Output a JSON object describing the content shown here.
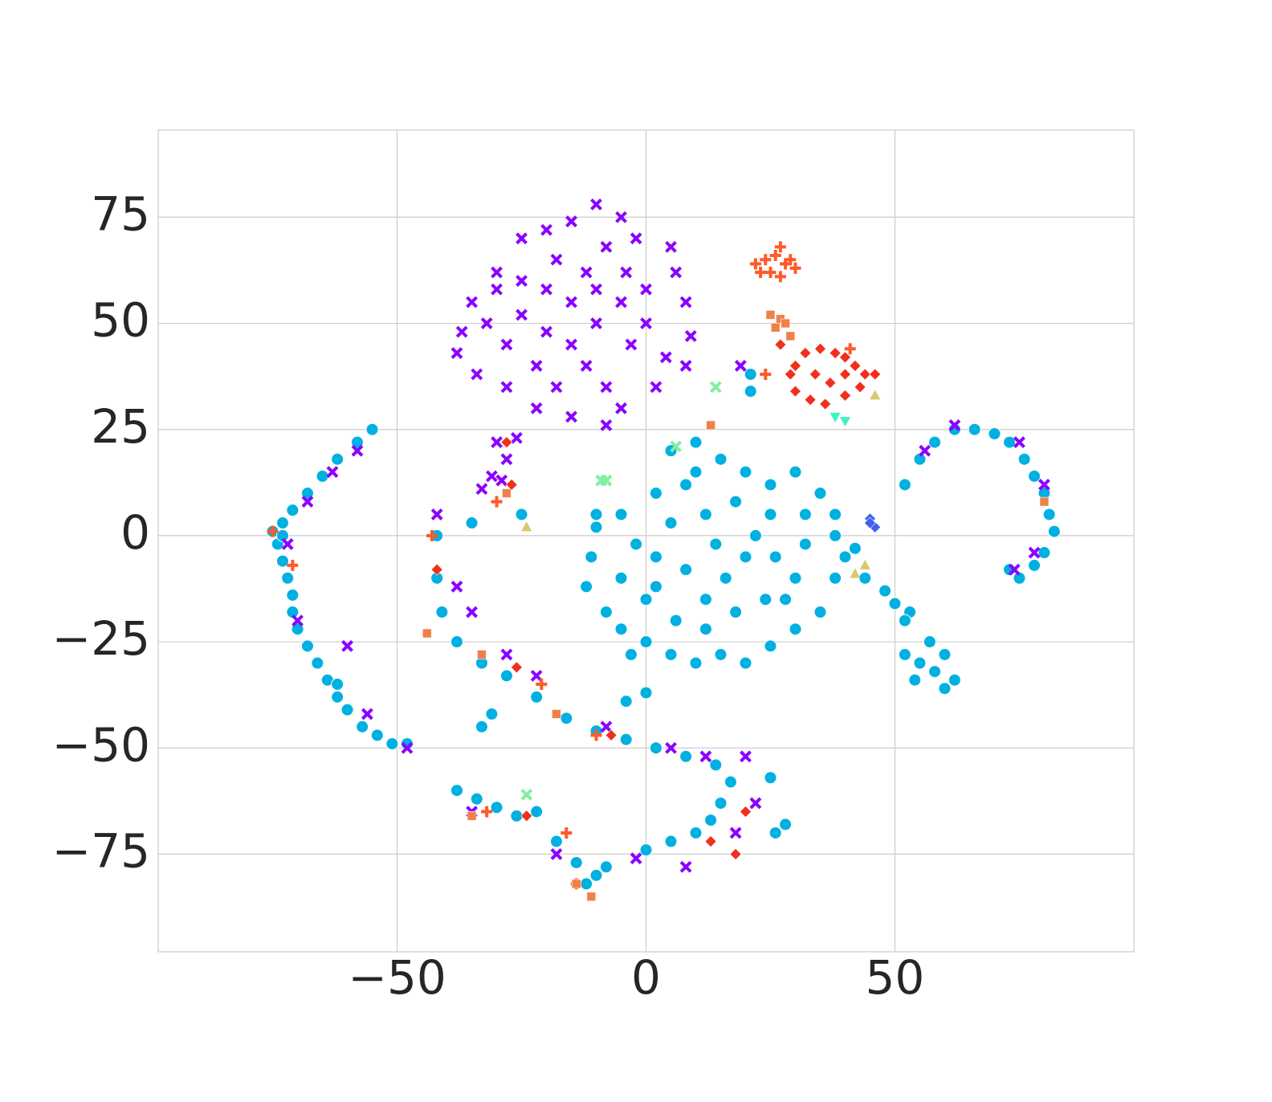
{
  "chart_data": {
    "type": "scatter",
    "xlim": [
      -98,
      98
    ],
    "ylim": [
      -98,
      95.5
    ],
    "xticks": [
      {
        "value": -50,
        "label": "−50"
      },
      0,
      50
    ],
    "yticks": [
      {
        "value": -75,
        "label": "−75"
      },
      {
        "value": -50,
        "label": "−50"
      },
      {
        "value": -25,
        "label": "−25"
      },
      0,
      25,
      50,
      75
    ],
    "grid": true,
    "series": [
      {
        "color": "#00b0e0",
        "marker": "circle",
        "x": [
          -55,
          -58,
          -62,
          -65,
          -68,
          -71,
          -73,
          -75,
          -74,
          -73,
          -72,
          -71,
          -71,
          -70,
          -68,
          -66,
          -64,
          -62,
          -60,
          -57,
          -54,
          -51,
          -48,
          -62,
          -73,
          -10,
          -25,
          -35,
          -42,
          -42,
          -41,
          -38,
          -33,
          -28,
          -22,
          -16,
          -10,
          -4,
          2,
          8,
          14,
          17,
          15,
          13,
          10,
          5,
          0,
          -38,
          -34,
          -30,
          -26,
          -22,
          -18,
          -14,
          -10,
          -12,
          -8,
          -31,
          -33,
          0,
          -4,
          28,
          26,
          25,
          52,
          55,
          58,
          62,
          66,
          70,
          73,
          76,
          78,
          80,
          81,
          82,
          80,
          78,
          75,
          73,
          52,
          55,
          58,
          60,
          62,
          57,
          54,
          60,
          40,
          44,
          48,
          50,
          53,
          52,
          42,
          5,
          10,
          15,
          20,
          25,
          30,
          35,
          38,
          8,
          2,
          -5,
          -10,
          -11,
          -12,
          -8,
          -5,
          0,
          5,
          10,
          15,
          20,
          25,
          30,
          35,
          38,
          38,
          32,
          25,
          18,
          12,
          5,
          -2,
          -5,
          2,
          8,
          14,
          20,
          26,
          30,
          24,
          18,
          12,
          6,
          0,
          -3,
          12,
          28,
          22,
          10,
          32,
          2,
          16,
          21,
          21
        ],
        "values": [
          25,
          22,
          18,
          14,
          10,
          6,
          3,
          1,
          -2,
          -6,
          -10,
          -14,
          -18,
          -22,
          -26,
          -30,
          -34,
          -38,
          -41,
          -45,
          -47,
          -49,
          -49,
          -35,
          0,
          5,
          5,
          3,
          0,
          -10,
          -18,
          -25,
          -30,
          -33,
          -38,
          -43,
          -46,
          -48,
          -50,
          -52,
          -54,
          -58,
          -63,
          -67,
          -70,
          -72,
          -74,
          -60,
          -62,
          -64,
          -66,
          -65,
          -72,
          -77,
          -80,
          -82,
          -78,
          -42,
          -45,
          -37,
          -39,
          -68,
          -70,
          -57,
          12,
          18,
          22,
          25,
          25,
          24,
          22,
          18,
          14,
          10,
          5,
          1,
          -4,
          -7,
          -10,
          -8,
          -28,
          -30,
          -32,
          -28,
          -34,
          -25,
          -34,
          -36,
          -5,
          -10,
          -13,
          -16,
          -18,
          -20,
          -3,
          20,
          22,
          18,
          15,
          12,
          15,
          10,
          5,
          12,
          10,
          5,
          2,
          -5,
          -12,
          -18,
          -22,
          -25,
          -28,
          -30,
          -28,
          -30,
          -26,
          -22,
          -18,
          -10,
          0,
          5,
          5,
          8,
          5,
          3,
          -2,
          -10,
          -12,
          -8,
          -2,
          -5,
          -5,
          -10,
          -15,
          -18,
          -15,
          -20,
          -15,
          -28,
          -22,
          -15,
          0,
          15,
          -2,
          -5,
          -10,
          38,
          34
        ]
      },
      {
        "color": "#8b00ff",
        "marker": "x",
        "x": [
          -10,
          -15,
          -5,
          -20,
          -25,
          -2,
          5,
          6,
          8,
          9,
          8,
          -30,
          -35,
          -37,
          -38,
          -34,
          -28,
          -22,
          -15,
          -8,
          -5,
          2,
          4,
          -10,
          -15,
          -20,
          -25,
          -5,
          -12,
          -18,
          -28,
          -22,
          -12,
          -3,
          0,
          -8,
          -30,
          -25,
          -15,
          -8,
          0,
          -20,
          -32,
          -18,
          -10,
          -4,
          -30,
          -28,
          -31,
          -33,
          -26,
          -29,
          -72,
          -70,
          -60,
          -56,
          -48,
          -68,
          -63,
          -58,
          -42,
          -38,
          -35,
          -28,
          -22,
          -8,
          5,
          12,
          20,
          -35,
          -18,
          -2,
          8,
          18,
          22,
          62,
          75,
          80,
          78,
          74,
          56,
          19
        ],
        "values": [
          78,
          74,
          75,
          72,
          70,
          70,
          68,
          62,
          55,
          47,
          40,
          62,
          55,
          48,
          43,
          38,
          35,
          30,
          28,
          26,
          30,
          35,
          42,
          50,
          55,
          48,
          52,
          55,
          62,
          65,
          45,
          40,
          40,
          45,
          58,
          68,
          58,
          60,
          45,
          35,
          50,
          58,
          50,
          35,
          58,
          62,
          22,
          18,
          14,
          11,
          23,
          13,
          -2,
          -20,
          -26,
          -42,
          -50,
          8,
          15,
          20,
          5,
          -12,
          -18,
          -28,
          -33,
          -45,
          -50,
          -52,
          -52,
          -65,
          -75,
          -76,
          -78,
          -70,
          -63,
          26,
          22,
          12,
          -4,
          -8,
          20,
          40
        ]
      },
      {
        "color": "#ff5a28",
        "marker": "plus",
        "x": [
          22,
          24,
          26,
          27,
          28,
          30,
          25,
          23,
          27,
          29,
          -75,
          -71,
          -43,
          -30,
          -21,
          -10,
          -16,
          -32,
          -14,
          41,
          24
        ],
        "values": [
          64,
          65,
          66,
          68,
          64,
          63,
          62,
          62,
          61,
          65,
          1,
          -7,
          0,
          8,
          -35,
          -47,
          -70,
          -65,
          -82,
          44,
          38
        ]
      },
      {
        "color": "#f0804a",
        "marker": "square",
        "x": [
          25,
          27,
          26,
          28,
          29,
          -44,
          -33,
          -18,
          -35,
          -11,
          -14,
          80,
          13,
          -28
        ],
        "values": [
          52,
          51,
          49,
          50,
          47,
          -23,
          -28,
          -42,
          -66,
          -85,
          -82,
          8,
          26,
          10
        ]
      },
      {
        "color": "#f0301c",
        "marker": "diamond",
        "x": [
          30,
          32,
          35,
          38,
          40,
          42,
          44,
          46,
          43,
          40,
          36,
          33,
          30,
          29,
          34,
          37,
          40,
          27,
          -28,
          -27,
          -24,
          -42,
          13,
          18,
          20,
          -26,
          -7
        ],
        "values": [
          40,
          43,
          44,
          43,
          42,
          40,
          38,
          38,
          35,
          33,
          31,
          32,
          34,
          38,
          38,
          36,
          38,
          45,
          22,
          12,
          -66,
          -8,
          -72,
          -75,
          -65,
          -31,
          -47
        ]
      },
      {
        "color": "#80f0a0",
        "marker": "x",
        "x": [
          14,
          6,
          -9,
          -8,
          -24
        ],
        "values": [
          35,
          21,
          13,
          13,
          -61
        ]
      },
      {
        "color": "#40f0c0",
        "marker": "triangle-down",
        "x": [
          38,
          40
        ],
        "values": [
          28,
          27
        ]
      },
      {
        "color": "#d8c870",
        "marker": "triangle-up",
        "x": [
          46,
          42,
          44,
          -24
        ],
        "values": [
          33,
          -9,
          -7,
          2
        ]
      },
      {
        "color": "#4060f0",
        "marker": "diamond",
        "x": [
          45,
          46,
          45
        ],
        "values": [
          4,
          2,
          3
        ]
      }
    ]
  }
}
